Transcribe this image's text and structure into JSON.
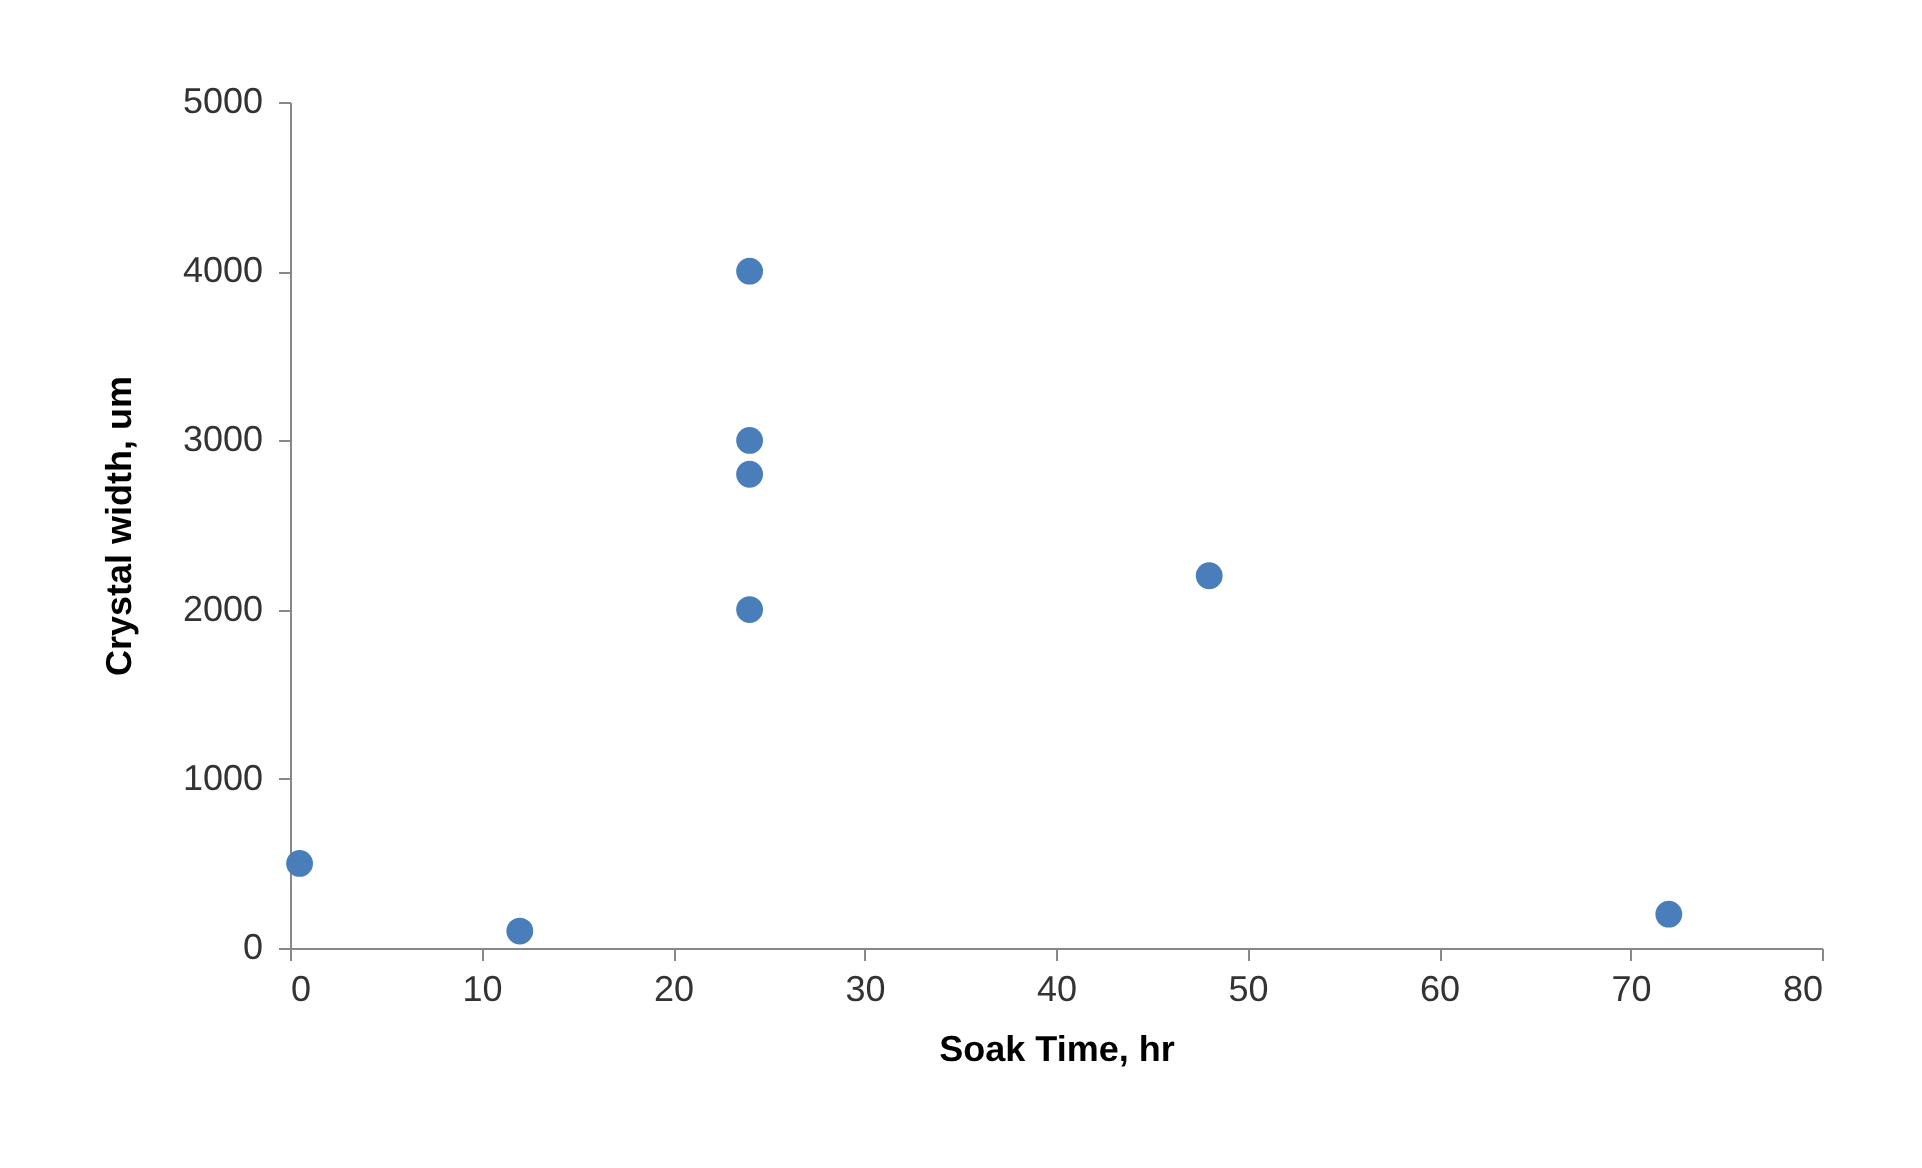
{
  "chart_data": {
    "type": "scatter",
    "xlabel": "Soak Time, hr",
    "ylabel": "Crystal width, um",
    "x": [
      0.5,
      12,
      24,
      24,
      24,
      24,
      48,
      72
    ],
    "series": [
      {
        "color": "#4a7ebb",
        "values": [
          500,
          100,
          4000,
          3000,
          2800,
          2000,
          2200,
          200
        ]
      }
    ],
    "xlim": [
      0,
      80
    ],
    "xticks": [
      0,
      10,
      20,
      30,
      40,
      50,
      60,
      70,
      80
    ],
    "ylim": [
      0,
      5000
    ],
    "yticks": [
      0,
      1000,
      2000,
      3000,
      4000,
      5000
    ],
    "grid": false,
    "legend": false,
    "marker": "circle"
  }
}
